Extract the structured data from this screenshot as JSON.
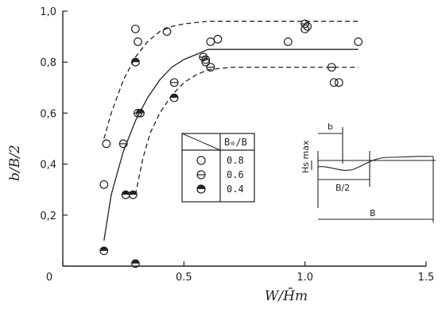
{
  "chart_data": {
    "type": "scatter",
    "xlabel": "W/H̄m",
    "ylabel": "b/B/2",
    "xlim": [
      0,
      1.5
    ],
    "ylim": [
      0,
      1.0
    ],
    "x_ticks": [
      "0",
      "0.5",
      "1.0",
      "1.5"
    ],
    "y_ticks": [
      "0",
      "0,2",
      "0,4",
      "0,6",
      "0,8",
      "1,0"
    ],
    "grid": false,
    "legend_position": "center-right",
    "legend_header": "B₀/B",
    "series": [
      {
        "name": "0.8",
        "marker": "open-circle",
        "points": [
          [
            0.18,
            0.48
          ],
          [
            0.17,
            0.32
          ],
          [
            0.3,
            0.93
          ],
          [
            0.31,
            0.88
          ],
          [
            0.43,
            0.92
          ],
          [
            0.59,
            0.8
          ],
          [
            0.61,
            0.88
          ],
          [
            0.64,
            0.89
          ],
          [
            0.93,
            0.88
          ],
          [
            1.0,
            0.93
          ],
          [
            1.01,
            0.94
          ],
          [
            1.22,
            0.88
          ],
          [
            1.12,
            0.72
          ],
          [
            1.14,
            0.72
          ]
        ]
      },
      {
        "name": "0.6",
        "marker": "circle-with-bar",
        "points": [
          [
            0.25,
            0.48
          ],
          [
            0.31,
            0.6
          ],
          [
            0.46,
            0.72
          ],
          [
            0.58,
            0.82
          ],
          [
            0.59,
            0.81
          ],
          [
            0.61,
            0.78
          ],
          [
            1.0,
            0.95
          ],
          [
            1.11,
            0.78
          ]
        ]
      },
      {
        "name": "0.4",
        "marker": "half-filled-circle",
        "points": [
          [
            0.17,
            0.06
          ],
          [
            0.26,
            0.28
          ],
          [
            0.29,
            0.28
          ],
          [
            0.3,
            0.8
          ],
          [
            0.32,
            0.6
          ],
          [
            0.46,
            0.66
          ],
          [
            0.3,
            0.01
          ]
        ]
      }
    ],
    "curves": [
      {
        "style": "dashed",
        "x": [
          0.17,
          0.2,
          0.25,
          0.3,
          0.35,
          0.4,
          0.45,
          0.5,
          0.55,
          0.6,
          0.7,
          0.8,
          0.9,
          1.0,
          1.22
        ],
        "y": [
          0.5,
          0.6,
          0.73,
          0.82,
          0.88,
          0.92,
          0.94,
          0.95,
          0.955,
          0.96,
          0.96,
          0.96,
          0.96,
          0.96,
          0.96
        ]
      },
      {
        "style": "solid",
        "x": [
          0.17,
          0.2,
          0.25,
          0.3,
          0.35,
          0.4,
          0.45,
          0.5,
          0.55,
          0.6,
          0.7,
          0.8,
          0.9,
          1.0,
          1.22
        ],
        "y": [
          0.1,
          0.28,
          0.45,
          0.57,
          0.66,
          0.73,
          0.78,
          0.81,
          0.83,
          0.85,
          0.85,
          0.85,
          0.85,
          0.85,
          0.85
        ]
      },
      {
        "style": "dashed",
        "x": [
          0.3,
          0.33,
          0.36,
          0.4,
          0.45,
          0.5,
          0.55,
          0.6,
          0.7,
          0.8,
          0.9,
          1.0,
          1.1,
          1.22
        ],
        "y": [
          0.28,
          0.42,
          0.52,
          0.6,
          0.67,
          0.72,
          0.75,
          0.77,
          0.78,
          0.78,
          0.78,
          0.78,
          0.78,
          0.78
        ]
      }
    ],
    "inset": {
      "labels": {
        "b": "b",
        "half": "B/2",
        "full": "B",
        "depth": "Hs max"
      }
    }
  }
}
